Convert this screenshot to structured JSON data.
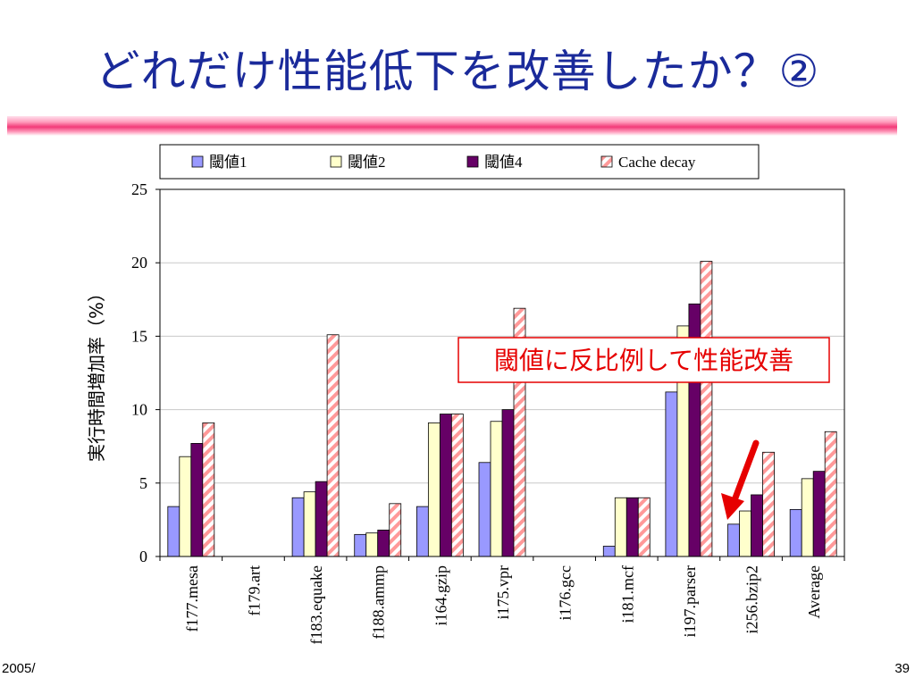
{
  "slide": {
    "title": "どれだけ性能低下を改善したか？②",
    "footer_left": "2005/",
    "page_number": "39"
  },
  "colors": {
    "title": "#1a2a9a",
    "rule": "#f23a78",
    "annotation": "#e60000",
    "series": [
      "#9999ff",
      "#ffffcc",
      "#660066",
      "#ff9999"
    ]
  },
  "chart_data": {
    "type": "bar",
    "ylabel": "実行時間増加率（%）",
    "ylim": [
      0,
      25
    ],
    "yticks": [
      0,
      5,
      10,
      15,
      20,
      25
    ],
    "grid": true,
    "legend_position": "top",
    "categories": [
      "f177.mesa",
      "f179.art",
      "f183.equake",
      "f188.ammp",
      "i164.gzip",
      "i175.vpr",
      "i176.gcc",
      "i181.mcf",
      "i197.parser",
      "i256.bzip2",
      "Average"
    ],
    "series": [
      {
        "name": "閾値1",
        "pattern": "solid",
        "values": [
          3.4,
          0,
          4.0,
          1.5,
          3.4,
          6.4,
          0,
          0.7,
          11.2,
          2.2,
          3.2
        ]
      },
      {
        "name": "閾値2",
        "pattern": "solid",
        "values": [
          6.8,
          0,
          4.4,
          1.6,
          9.1,
          9.2,
          0,
          4.0,
          15.7,
          3.1,
          5.3
        ]
      },
      {
        "name": "閾値4",
        "pattern": "solid",
        "values": [
          7.7,
          0,
          5.1,
          1.8,
          9.7,
          10.0,
          0,
          4.0,
          17.2,
          4.2,
          5.8
        ]
      },
      {
        "name": "Cache decay",
        "pattern": "hatched",
        "values": [
          9.1,
          0,
          15.1,
          3.6,
          9.7,
          16.9,
          0,
          4.0,
          20.1,
          7.1,
          8.5
        ]
      }
    ],
    "annotation": {
      "text": "閾値に反比例して性能改善"
    }
  }
}
